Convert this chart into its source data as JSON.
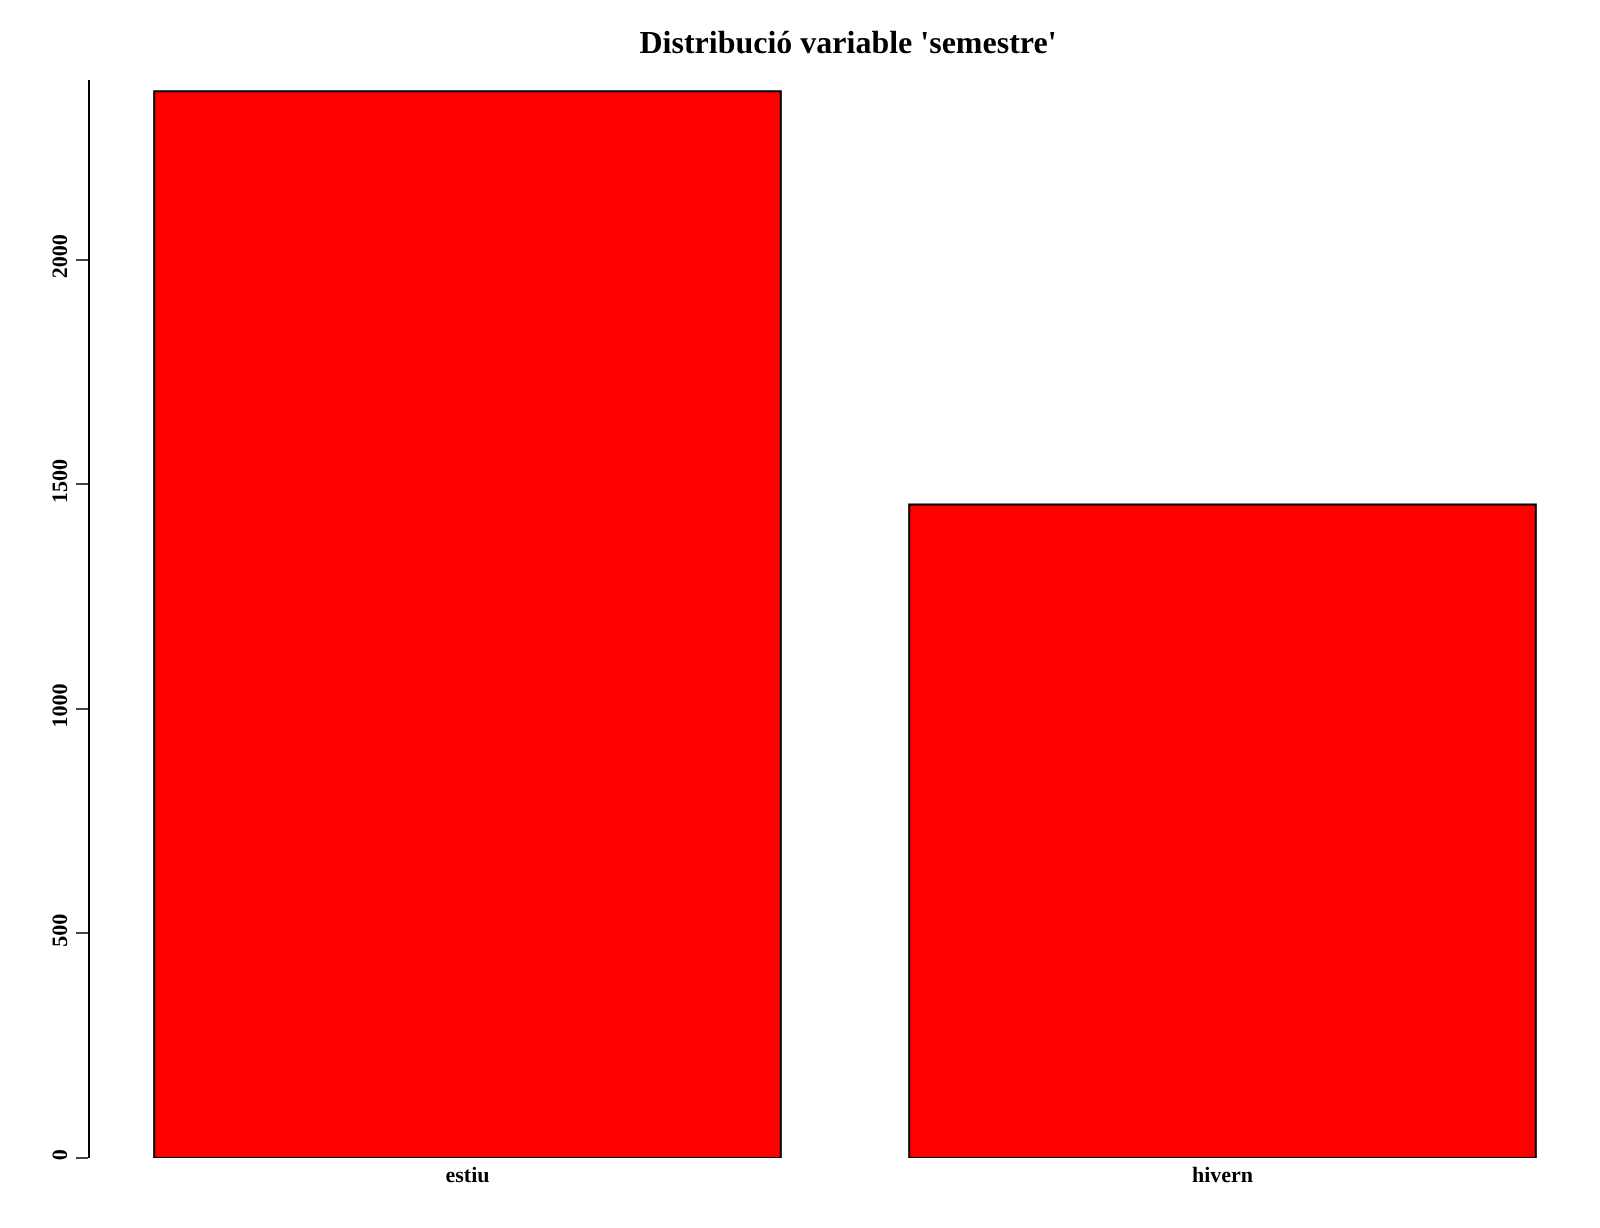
{
  "chart_data": {
    "type": "bar",
    "title": "Distribució variable 'semestre'",
    "categories": [
      "estiu",
      "hivern"
    ],
    "values": [
      2375,
      1455
    ],
    "color": "#ff0000",
    "ylim": [
      0,
      2400
    ],
    "yticks": [
      0,
      500,
      1000,
      1500,
      2000
    ],
    "legend": false
  }
}
